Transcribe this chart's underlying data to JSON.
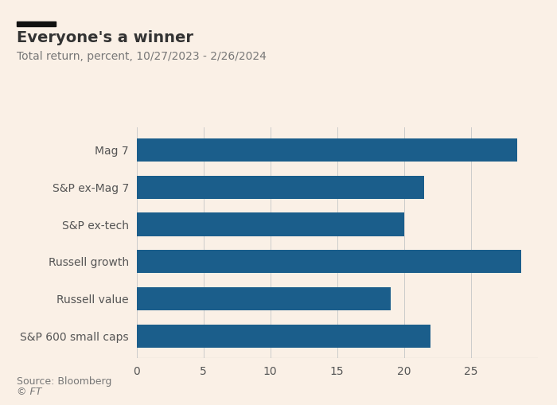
{
  "title": "Everyone's a winner",
  "subtitle": "Total return, percent, 10/27/2023 - 2/26/2024",
  "categories": [
    "S&P 600 small caps",
    "Russell value",
    "Russell growth",
    "S&P ex-tech",
    "S&P ex-Mag 7",
    "Mag 7"
  ],
  "values": [
    22.0,
    19.0,
    28.8,
    20.0,
    21.5,
    28.5
  ],
  "bar_color": "#1B5E8B",
  "background_color": "#FAF0E6",
  "text_color": "#333333",
  "label_color": "#555555",
  "source_text": "Source: Bloomberg",
  "copyright_text": "© FT",
  "xlim": [
    0,
    30
  ],
  "xticks": [
    0,
    5,
    10,
    15,
    20,
    25
  ],
  "title_fontsize": 14,
  "subtitle_fontsize": 10,
  "label_fontsize": 10,
  "tick_fontsize": 10,
  "source_fontsize": 9,
  "bar_height": 0.62,
  "decor_bar_color": "#111111"
}
